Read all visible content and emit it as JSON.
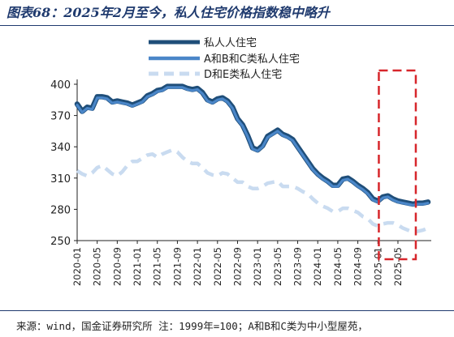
{
  "figure": {
    "title": "图表68：2025年2月至今，私人住宅价格指数稳中略升",
    "source": "来源：wind，国金证券研究所 注：1999年=100；A和B和C类为中小型屋苑，"
  },
  "colors": {
    "private": "#1f4e79",
    "abc": "#4a86c8",
    "de": "#c9dbf0",
    "highlight": "#d7262b",
    "axis": "#222222"
  },
  "chart_data": {
    "type": "line",
    "title": "",
    "xlabel": "",
    "ylabel": "",
    "ylim": [
      250,
      400
    ],
    "yticks": [
      250,
      280,
      310,
      340,
      370,
      400
    ],
    "x_start": "2020-01",
    "xticks": [
      "2020-01",
      "2020-05",
      "2020-09",
      "2021-01",
      "2021-05",
      "2021-09",
      "2022-01",
      "2022-05",
      "2022-09",
      "2023-01",
      "2023-05",
      "2023-09",
      "2024-01",
      "2024-05",
      "2024-09",
      "2025-01",
      "2025-05"
    ],
    "legend_position": "top-right",
    "highlight_range": [
      "2025-02",
      "2025-05"
    ],
    "series": [
      {
        "name": "私人人住宅",
        "style": "solid-thick",
        "values": [
          381,
          374,
          378,
          377,
          388,
          388,
          387,
          383,
          384,
          383,
          382,
          380,
          382,
          384,
          389,
          391,
          394,
          395,
          398,
          398,
          398,
          398,
          396,
          395,
          396,
          392,
          385,
          383,
          386,
          387,
          384,
          378,
          367,
          361,
          351,
          339,
          337,
          341,
          350,
          353,
          356,
          352,
          350,
          347,
          340,
          333,
          326,
          319,
          314,
          310,
          307,
          303,
          303,
          309,
          310,
          307,
          303,
          300,
          296,
          290,
          288,
          292,
          293,
          290,
          288,
          287,
          286,
          285,
          286,
          286,
          287
        ]
      },
      {
        "name": "A和B和C类私人住宅",
        "style": "solid-thick",
        "values": [
          380,
          373,
          377,
          376,
          387,
          387,
          386,
          382,
          383,
          382,
          381,
          379,
          381,
          383,
          388,
          390,
          393,
          394,
          397,
          397,
          397,
          397,
          395,
          394,
          395,
          391,
          384,
          382,
          385,
          386,
          383,
          377,
          366,
          360,
          350,
          338,
          336,
          340,
          349,
          352,
          355,
          351,
          349,
          346,
          339,
          332,
          325,
          318,
          313,
          309,
          306,
          302,
          302,
          308,
          309,
          306,
          302,
          299,
          295,
          289,
          287,
          291,
          292,
          289,
          287,
          286,
          285,
          284,
          285,
          285,
          286
        ]
      },
      {
        "name": "D和E类私人住宅",
        "style": "dashed",
        "values": [
          317,
          314,
          312,
          315,
          320,
          322,
          318,
          314,
          312,
          316,
          322,
          326,
          326,
          329,
          332,
          333,
          330,
          333,
          335,
          337,
          335,
          330,
          326,
          324,
          324,
          320,
          315,
          313,
          312,
          315,
          314,
          310,
          306,
          306,
          302,
          300,
          300,
          302,
          305,
          306,
          307,
          302,
          302,
          302,
          300,
          297,
          295,
          290,
          286,
          283,
          281,
          278,
          278,
          281,
          281,
          279,
          277,
          273,
          271,
          266,
          264,
          266,
          267,
          267,
          265,
          262,
          260,
          258,
          259,
          260,
          262
        ]
      }
    ]
  }
}
